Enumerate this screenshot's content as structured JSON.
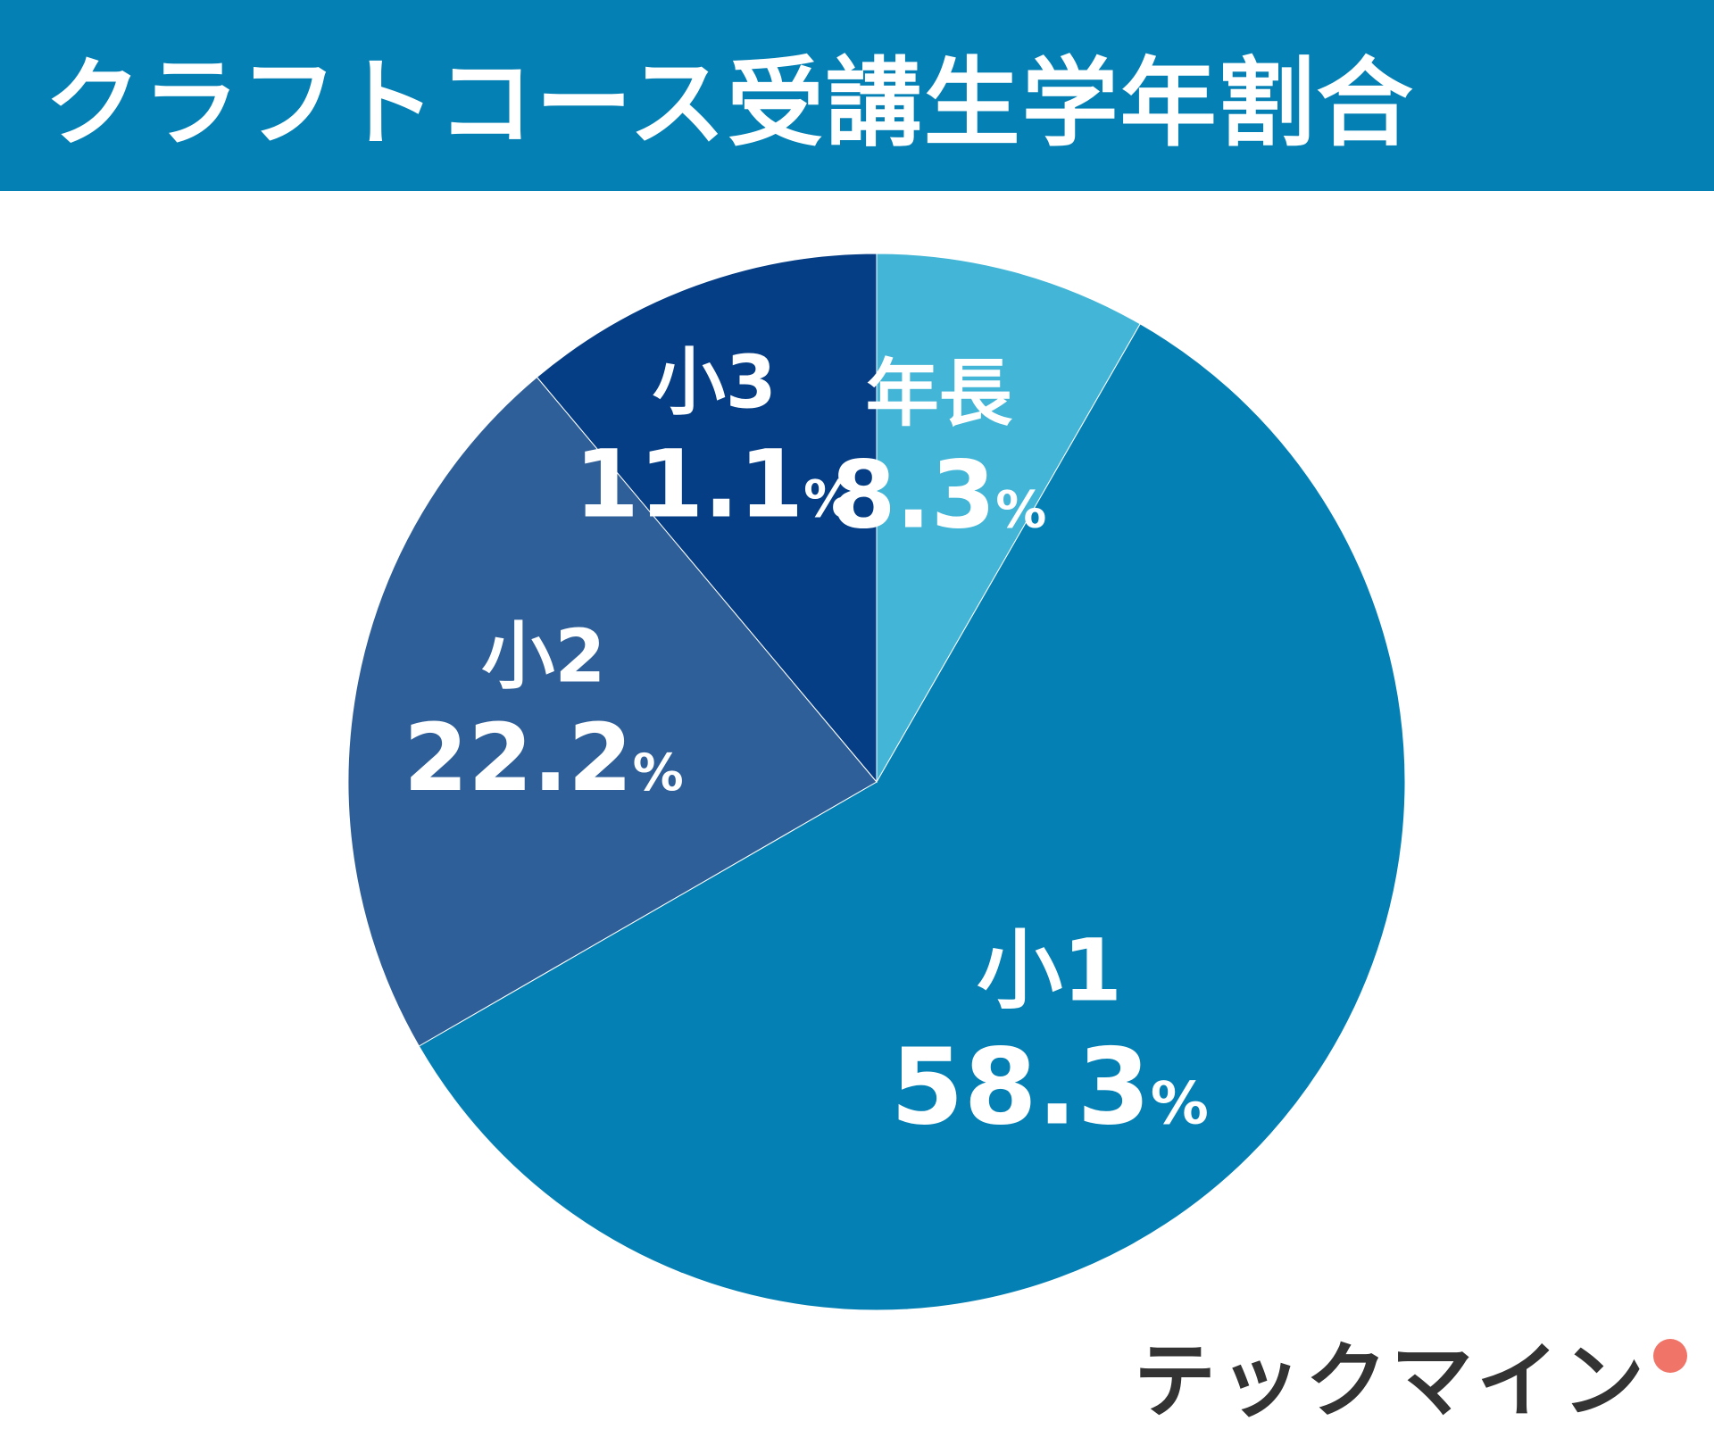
{
  "header": {
    "title": "クラフトコース受講生学年割合"
  },
  "chart_data": {
    "type": "pie",
    "title": "クラフトコース受講生学年割合",
    "start_angle_deg": 0,
    "direction": "clockwise",
    "slices": [
      {
        "label": "年長",
        "value": 8.3,
        "display": "8.3",
        "unit": "%",
        "color": "#43b5d6"
      },
      {
        "label": "小1",
        "value": 58.3,
        "display": "58.3",
        "unit": "%",
        "color": "#0580b4"
      },
      {
        "label": "小2",
        "value": 22.2,
        "display": "22.2",
        "unit": "%",
        "color": "#2f5f98"
      },
      {
        "label": "小3",
        "value": 11.1,
        "display": "11.1",
        "unit": "%",
        "color": "#063e86"
      }
    ]
  },
  "brand": {
    "name": "テックマイン",
    "text_color": "#333333",
    "accent_color": "#0580b4",
    "dot_color": "#f07468"
  }
}
